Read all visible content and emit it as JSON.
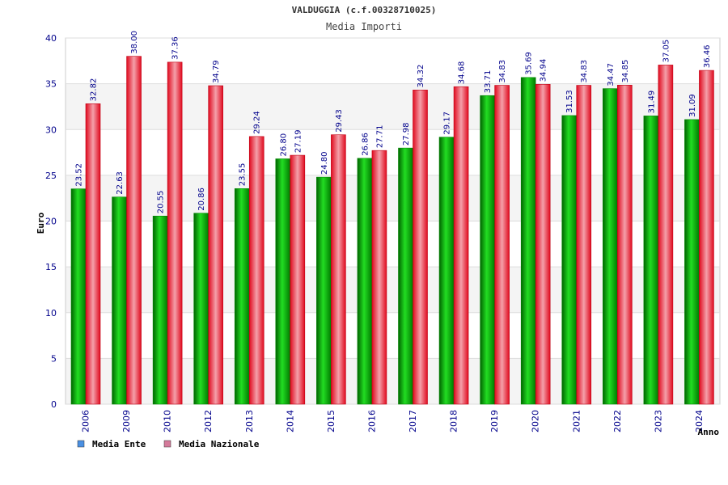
{
  "chart_data": {
    "type": "bar",
    "title": "VALDUGGIA (c.f.00328710025)",
    "subtitle": "Media Importi",
    "xlabel": "Anno",
    "ylabel": "Euro",
    "ylim": [
      0,
      40
    ],
    "yticks": [
      0,
      5,
      10,
      15,
      20,
      25,
      30,
      35,
      40
    ],
    "grid": true,
    "legend_position": "bottom-left",
    "categories": [
      "2006",
      "2009",
      "2010",
      "2012",
      "2013",
      "2014",
      "2015",
      "2016",
      "2017",
      "2018",
      "2019",
      "2020",
      "2021",
      "2022",
      "2023",
      "2024"
    ],
    "series": [
      {
        "name": "Media Ente",
        "color": "#00c000",
        "legend_color": "#4a90e2",
        "values": [
          23.52,
          22.63,
          20.55,
          20.86,
          23.55,
          26.8,
          24.8,
          26.86,
          27.98,
          29.17,
          33.71,
          35.69,
          31.53,
          34.47,
          31.49,
          31.09
        ],
        "labels": [
          "23.52",
          "22.63",
          "20.55",
          "20.86",
          "23.55",
          "26.80",
          "24.80",
          "26.86",
          "27.98",
          "29.17",
          "33.71",
          "35.69",
          "31.53",
          "34.47",
          "31.49",
          "31.09"
        ]
      },
      {
        "name": "Media Nazionale",
        "color": "#e0202a",
        "legend_color": "#d47a9a",
        "values": [
          32.82,
          38.0,
          37.36,
          34.79,
          29.24,
          27.19,
          29.43,
          27.71,
          34.32,
          34.68,
          34.83,
          34.94,
          34.83,
          34.85,
          37.05,
          36.46
        ],
        "labels": [
          "32.82",
          "38.00",
          "37.36",
          "34.79",
          "29.24",
          "27.19",
          "29.43",
          "27.71",
          "34.32",
          "34.68",
          "34.83",
          "34.94",
          "34.83",
          "34.85",
          "37.05",
          "36.46"
        ]
      }
    ]
  }
}
